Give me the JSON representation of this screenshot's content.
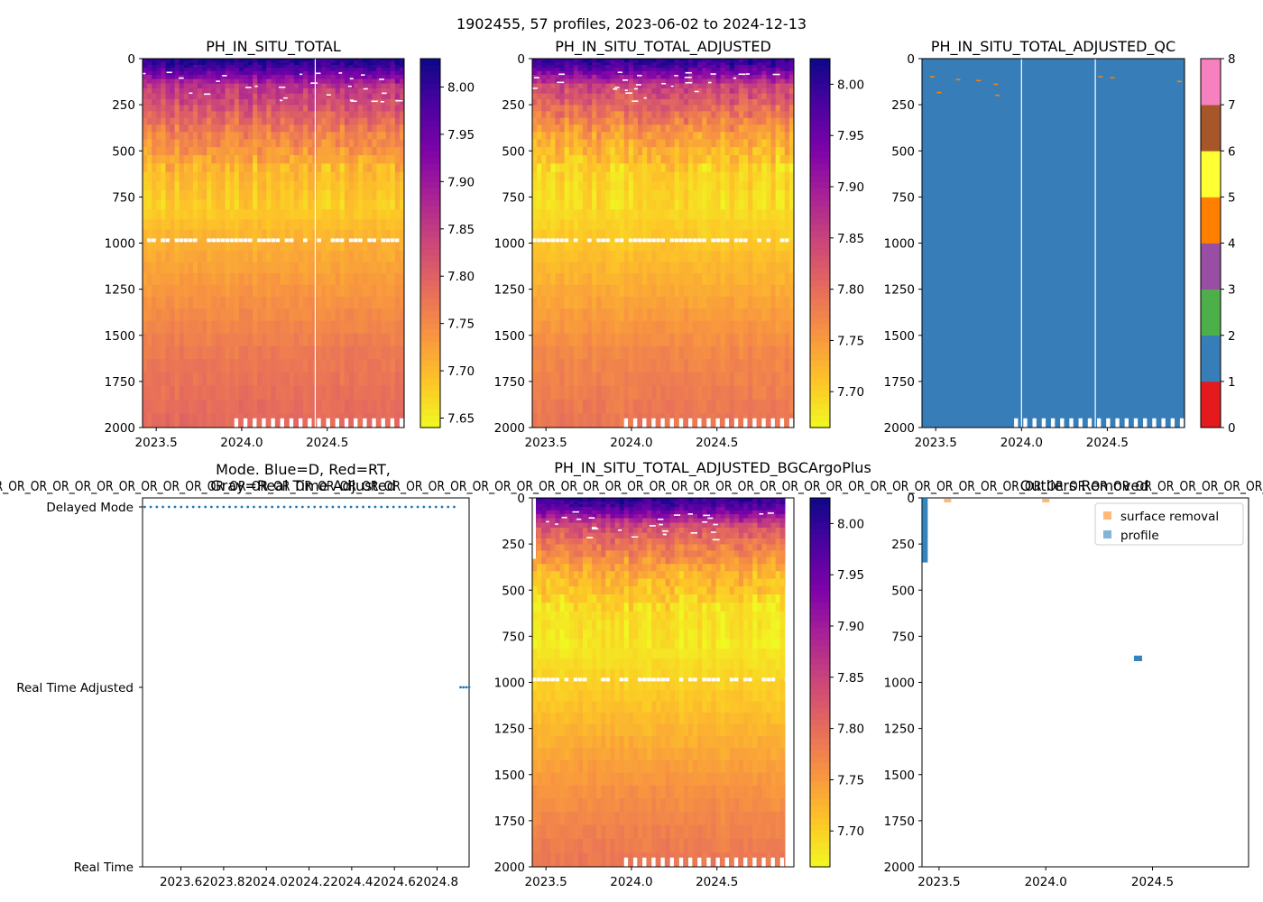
{
  "suptitle": "1902455, 57 profiles, 2023-06-02 to 2024-12-13",
  "colors": {
    "plasma": [
      "#f0f921",
      "#fdc527",
      "#f89540",
      "#e66c5c",
      "#cc4778",
      "#aa2395",
      "#7e03a8",
      "#4c02a1",
      "#0d0887"
    ],
    "qc_palette": [
      "#e41a1c",
      "#377eb8",
      "#4daf4a",
      "#984ea3",
      "#ff7f00",
      "#ffff33",
      "#a65628",
      "#f781bf",
      "#999999"
    ],
    "mode_dots": "#1f77b4",
    "surface_removal": "#ff7f0e",
    "profile_removal": "#1f77b4"
  },
  "chart_data": [
    {
      "panel": "raw",
      "type": "heatmap",
      "title": "PH_IN_SITU_TOTAL",
      "xlabel": "",
      "ylabel": "",
      "xlim": [
        2023.42,
        2024.95
      ],
      "ylim": [
        2000,
        0
      ],
      "xticks": [
        "2023.5",
        "2024.0",
        "2024.5"
      ],
      "yticks": [
        "0",
        "250",
        "500",
        "750",
        "1000",
        "1250",
        "1500",
        "1750",
        "2000"
      ],
      "colorbar": {
        "range": [
          7.64,
          8.03
        ],
        "ticks": [
          "7.65",
          "7.70",
          "7.75",
          "7.80",
          "7.85",
          "7.90",
          "7.95",
          "8.00"
        ]
      },
      "profile_count": 57,
      "depth_profile": {
        "depth": [
          0,
          50,
          100,
          150,
          250,
          400,
          600,
          800,
          1000,
          1300,
          1600,
          2000
        ],
        "value": [
          8.02,
          7.98,
          7.92,
          7.86,
          7.82,
          7.76,
          7.7,
          7.68,
          7.71,
          7.74,
          7.77,
          7.79
        ]
      }
    },
    {
      "panel": "adjusted",
      "type": "heatmap",
      "title": "PH_IN_SITU_TOTAL_ADJUSTED",
      "xlabel": "",
      "ylabel": "",
      "xlim": [
        2023.42,
        2024.95
      ],
      "ylim": [
        2000,
        0
      ],
      "xticks": [
        "2023.5",
        "2024.0",
        "2024.5"
      ],
      "yticks": [
        "0",
        "250",
        "500",
        "750",
        "1000",
        "1250",
        "1500",
        "1750",
        "2000"
      ],
      "colorbar": {
        "range": [
          7.665,
          8.025
        ],
        "ticks": [
          "7.70",
          "7.75",
          "7.80",
          "7.85",
          "7.90",
          "7.95",
          "8.00"
        ]
      },
      "profile_count": 57,
      "depth_profile": {
        "depth": [
          0,
          50,
          100,
          150,
          250,
          400,
          600,
          800,
          1000,
          1300,
          1600,
          2000
        ],
        "value": [
          8.01,
          7.97,
          7.91,
          7.85,
          7.81,
          7.75,
          7.7,
          7.69,
          7.71,
          7.74,
          7.77,
          7.79
        ]
      }
    },
    {
      "panel": "qc",
      "type": "heatmap",
      "title": "PH_IN_SITU_TOTAL_ADJUSTED_QC",
      "xlabel": "",
      "ylabel": "",
      "xlim": [
        2023.42,
        2024.95
      ],
      "ylim": [
        2000,
        0
      ],
      "xticks": [
        "2023.5",
        "2024.0",
        "2024.5"
      ],
      "yticks": [
        "0",
        "250",
        "500",
        "750",
        "1000",
        "1250",
        "1500",
        "1750",
        "2000"
      ],
      "colorbar": {
        "range": [
          0,
          8
        ],
        "ticks": [
          "0",
          "1",
          "2",
          "3",
          "4",
          "5",
          "6",
          "7",
          "8"
        ]
      },
      "dominant_flag": 1,
      "flag4_marks": [
        {
          "x": 2023.48,
          "depth": 95
        },
        {
          "x": 2023.52,
          "depth": 180
        },
        {
          "x": 2023.63,
          "depth": 110
        },
        {
          "x": 2023.75,
          "depth": 115
        },
        {
          "x": 2023.85,
          "depth": 135
        },
        {
          "x": 2023.86,
          "depth": 195
        },
        {
          "x": 2024.46,
          "depth": 95
        },
        {
          "x": 2024.53,
          "depth": 100
        },
        {
          "x": 2024.92,
          "depth": 120
        }
      ]
    },
    {
      "panel": "mode",
      "type": "scatter",
      "title": "Mode. Blue=D, Red=RT,\nGray=Real Time Adjusted",
      "xlabel": "",
      "ylabel": "",
      "xlim": [
        2023.42,
        2024.95
      ],
      "xticks": [
        2023.6,
        2023.8,
        2024.0,
        2024.2,
        2024.4,
        2024.6,
        2024.8
      ],
      "xtick_labels": [
        "2023.6",
        "2023.8",
        "2024.0",
        "2024.2",
        "2024.4",
        "2024.6",
        "2024.8"
      ],
      "ycategories": [
        "Real Time",
        "Real Time Adjusted",
        "Delayed Mode"
      ],
      "delayed_mode_range": [
        2023.43,
        2024.88
      ],
      "delayed_mode_count": 52,
      "real_time_adjusted_range": [
        2024.91,
        2024.95
      ],
      "real_time_adjusted_count": 4
    },
    {
      "panel": "bgcargoplus",
      "type": "heatmap",
      "title": "PH_IN_SITU_TOTAL_ADJUSTED_BGCArgoPlus",
      "xlabel": "",
      "ylabel": "",
      "xlim": [
        2023.42,
        2024.95
      ],
      "ylim": [
        2000,
        0
      ],
      "xticks": [
        "2023.5",
        "2024.0",
        "2024.5"
      ],
      "yticks": [
        "0",
        "250",
        "500",
        "750",
        "1000",
        "1250",
        "1500",
        "1750",
        "2000"
      ],
      "colorbar": {
        "range": [
          7.665,
          8.025
        ],
        "ticks": [
          "7.70",
          "7.75",
          "7.80",
          "7.85",
          "7.90",
          "7.95",
          "8.00"
        ]
      },
      "profile_count": 57,
      "depth_profile": {
        "depth": [
          0,
          50,
          100,
          150,
          250,
          400,
          600,
          800,
          1000,
          1300,
          1600,
          2000
        ],
        "value": [
          8.01,
          7.97,
          7.91,
          7.84,
          7.79,
          7.73,
          7.69,
          7.68,
          7.7,
          7.73,
          7.76,
          7.79
        ]
      }
    },
    {
      "panel": "outliers",
      "type": "scatter",
      "title": "Outliers Removed",
      "xlabel": "",
      "ylabel": "",
      "xlim": [
        2023.42,
        2024.95
      ],
      "ylim": [
        2000,
        0
      ],
      "xticks": [
        "2023.5",
        "2024.0",
        "2024.5"
      ],
      "yticks": [
        "0",
        "250",
        "500",
        "750",
        "1000",
        "1250",
        "1500",
        "1750",
        "2000"
      ],
      "legend": {
        "location": "top-right",
        "entries": [
          "surface removal",
          "profile"
        ]
      },
      "surface_removal": [
        {
          "x": 2023.54,
          "depth": 0
        },
        {
          "x": 2024.0,
          "depth": 0
        }
      ],
      "profile": {
        "column": {
          "x": 2023.43,
          "depth_range": [
            0,
            350
          ]
        },
        "cluster": {
          "x": 2024.43,
          "depth_range": [
            855,
            885
          ]
        }
      }
    }
  ],
  "overlap_banner": "R_OR_OR_OR_OR_OR_OR_OR_OR_OR_OR_OR_OR_OR_OR_OR_OR_OR_OR_OR_OR_OR_OR_OR_OR_OR_OR_OR_OR_OR_OR_OR_OR_OR_OR_OR_OR_OR_OR_OR_OR_OR_OR_OR_OR_OR_OR_OR_OR_OR_OR_OR_OR_OR_OR_OR_OR_OR_OR_OR_"
}
